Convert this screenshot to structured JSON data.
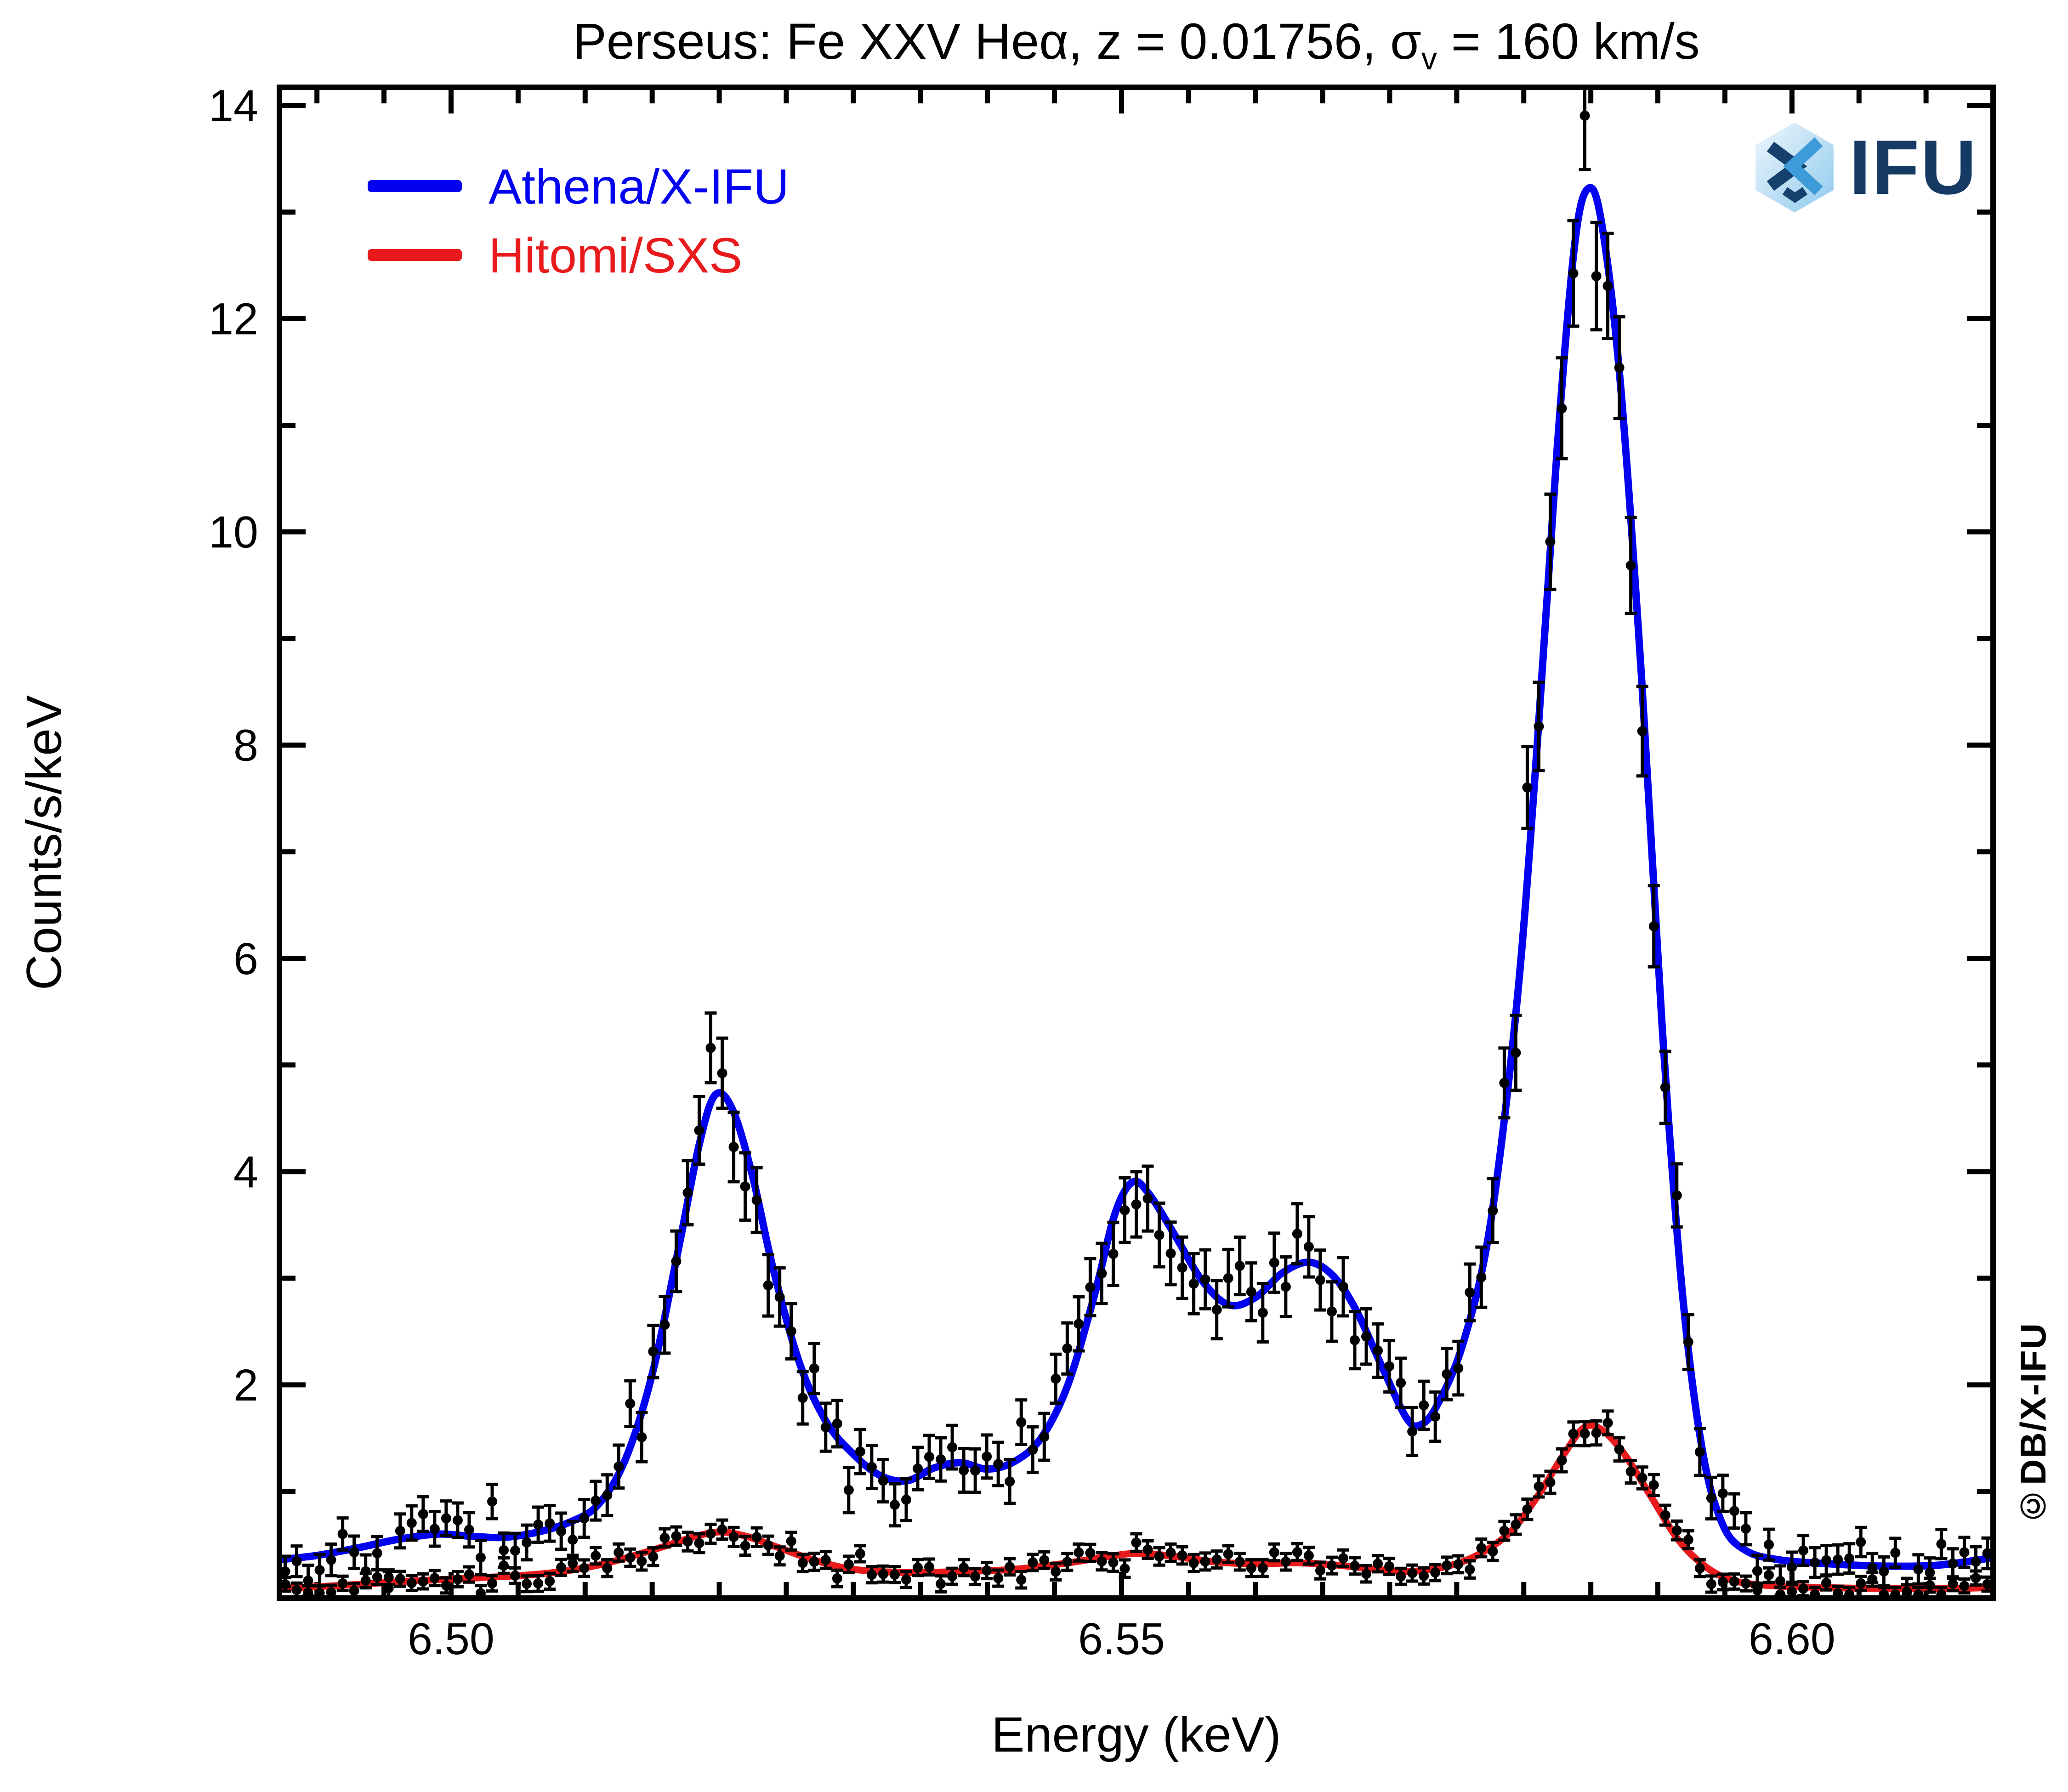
{
  "title": {
    "part1": "Perseus: Fe XXV Heα, z = 0.01756, σ",
    "sub": "v",
    "part2": " = 160 km/s"
  },
  "legend": [
    {
      "label": "Athena/X-IFU",
      "color": "#0202f0"
    },
    {
      "label": "Hitomi/SXS",
      "color": "#e81a1c"
    }
  ],
  "logo": {
    "text": "IFU"
  },
  "watermark": "©DB/X-IFU",
  "chart_data": {
    "type": "line",
    "title": "Perseus: Fe XXV Heα, z = 0.01756, σv = 160 km/s",
    "xlabel": "Energy (keV)",
    "ylabel": "Counts/s/keV",
    "xlim": [
      6.4872,
      6.615
    ],
    "ylim": [
      0,
      14.17
    ],
    "grid": false,
    "legend_position": "upper-left",
    "x_major_ticks": [
      6.5,
      6.55,
      6.6
    ],
    "x_tick_labels": [
      "6.50",
      "6.55",
      "6.60"
    ],
    "x_minor_step": 0.005,
    "y_major_ticks": [
      2,
      4,
      6,
      8,
      10,
      12,
      14
    ],
    "y_tick_labels": [
      "2",
      "4",
      "6",
      "8",
      "10",
      "12",
      "14"
    ],
    "y_minor_ticks": [
      1,
      3,
      5,
      7,
      9,
      11,
      13
    ],
    "series": [
      {
        "name": "Athena/X-IFU",
        "color": "#0202f0",
        "width": 16,
        "nodes": [
          [
            6.4872,
            0.36
          ],
          [
            6.49,
            0.4
          ],
          [
            6.493,
            0.47
          ],
          [
            6.496,
            0.55
          ],
          [
            6.499,
            0.6
          ],
          [
            6.5015,
            0.58
          ],
          [
            6.504,
            0.57
          ],
          [
            6.5065,
            0.62
          ],
          [
            6.509,
            0.72
          ],
          [
            6.511,
            0.88
          ],
          [
            6.513,
            1.3
          ],
          [
            6.515,
            2.1
          ],
          [
            6.517,
            3.3
          ],
          [
            6.5185,
            4.25
          ],
          [
            6.5197,
            4.72
          ],
          [
            6.521,
            4.58
          ],
          [
            6.5225,
            3.95
          ],
          [
            6.524,
            3.1
          ],
          [
            6.526,
            2.2
          ],
          [
            6.528,
            1.65
          ],
          [
            6.53,
            1.35
          ],
          [
            6.532,
            1.15
          ],
          [
            6.534,
            1.1
          ],
          [
            6.536,
            1.22
          ],
          [
            6.538,
            1.27
          ],
          [
            6.54,
            1.21
          ],
          [
            6.542,
            1.28
          ],
          [
            6.544,
            1.5
          ],
          [
            6.546,
            2.0
          ],
          [
            6.548,
            2.85
          ],
          [
            6.5495,
            3.6
          ],
          [
            6.5508,
            3.9
          ],
          [
            6.552,
            3.8
          ],
          [
            6.554,
            3.4
          ],
          [
            6.556,
            2.98
          ],
          [
            6.558,
            2.75
          ],
          [
            6.56,
            2.82
          ],
          [
            6.562,
            3.05
          ],
          [
            6.564,
            3.15
          ],
          [
            6.5658,
            3.02
          ],
          [
            6.5675,
            2.7
          ],
          [
            6.5695,
            2.15
          ],
          [
            6.5712,
            1.7
          ],
          [
            6.5722,
            1.62
          ],
          [
            6.5735,
            1.8
          ],
          [
            6.5755,
            2.4
          ],
          [
            6.5775,
            3.5
          ],
          [
            6.5795,
            5.6
          ],
          [
            6.581,
            8.0
          ],
          [
            6.5825,
            10.8
          ],
          [
            6.5838,
            12.7
          ],
          [
            6.5848,
            13.22
          ],
          [
            6.5858,
            12.9
          ],
          [
            6.5872,
            11.4
          ],
          [
            6.5888,
            8.6
          ],
          [
            6.5903,
            5.4
          ],
          [
            6.5918,
            2.9
          ],
          [
            6.5933,
            1.4
          ],
          [
            6.5948,
            0.7
          ],
          [
            6.5965,
            0.45
          ],
          [
            6.599,
            0.36
          ],
          [
            6.603,
            0.32
          ],
          [
            6.607,
            0.3
          ],
          [
            6.611,
            0.31
          ],
          [
            6.615,
            0.38
          ]
        ]
      },
      {
        "name": "Hitomi/SXS",
        "color": "#e81a1c",
        "width": 15,
        "nodes": [
          [
            6.4872,
            0.09
          ],
          [
            6.492,
            0.12
          ],
          [
            6.497,
            0.16
          ],
          [
            6.502,
            0.19
          ],
          [
            6.507,
            0.23
          ],
          [
            6.511,
            0.31
          ],
          [
            6.515,
            0.45
          ],
          [
            6.518,
            0.57
          ],
          [
            6.52,
            0.62
          ],
          [
            6.522,
            0.58
          ],
          [
            6.5245,
            0.47
          ],
          [
            6.527,
            0.36
          ],
          [
            6.53,
            0.27
          ],
          [
            6.534,
            0.24
          ],
          [
            6.538,
            0.25
          ],
          [
            6.542,
            0.27
          ],
          [
            6.546,
            0.33
          ],
          [
            6.5495,
            0.4
          ],
          [
            6.5515,
            0.42
          ],
          [
            6.554,
            0.39
          ],
          [
            6.557,
            0.34
          ],
          [
            6.56,
            0.32
          ],
          [
            6.563,
            0.33
          ],
          [
            6.566,
            0.31
          ],
          [
            6.569,
            0.27
          ],
          [
            6.5715,
            0.25
          ],
          [
            6.574,
            0.29
          ],
          [
            6.5765,
            0.4
          ],
          [
            6.579,
            0.62
          ],
          [
            6.581,
            0.95
          ],
          [
            6.583,
            1.35
          ],
          [
            6.5845,
            1.6
          ],
          [
            6.5858,
            1.58
          ],
          [
            6.5875,
            1.35
          ],
          [
            6.5895,
            0.95
          ],
          [
            6.5915,
            0.55
          ],
          [
            6.5935,
            0.3
          ],
          [
            6.5955,
            0.17
          ],
          [
            6.598,
            0.12
          ],
          [
            6.602,
            0.1
          ],
          [
            6.607,
            0.09
          ],
          [
            6.612,
            0.09
          ],
          [
            6.615,
            0.1
          ]
        ]
      }
    ],
    "scatter": {
      "color": "#000000",
      "n_points": 149,
      "marker_radius": 11,
      "series": [
        {
          "follows": 0,
          "err_base": 0.07,
          "err_sqrt": 0.12,
          "seed": 42
        },
        {
          "follows": 1,
          "err_base": 0.05,
          "err_sqrt": 0.05,
          "seed": 1337
        }
      ]
    }
  }
}
